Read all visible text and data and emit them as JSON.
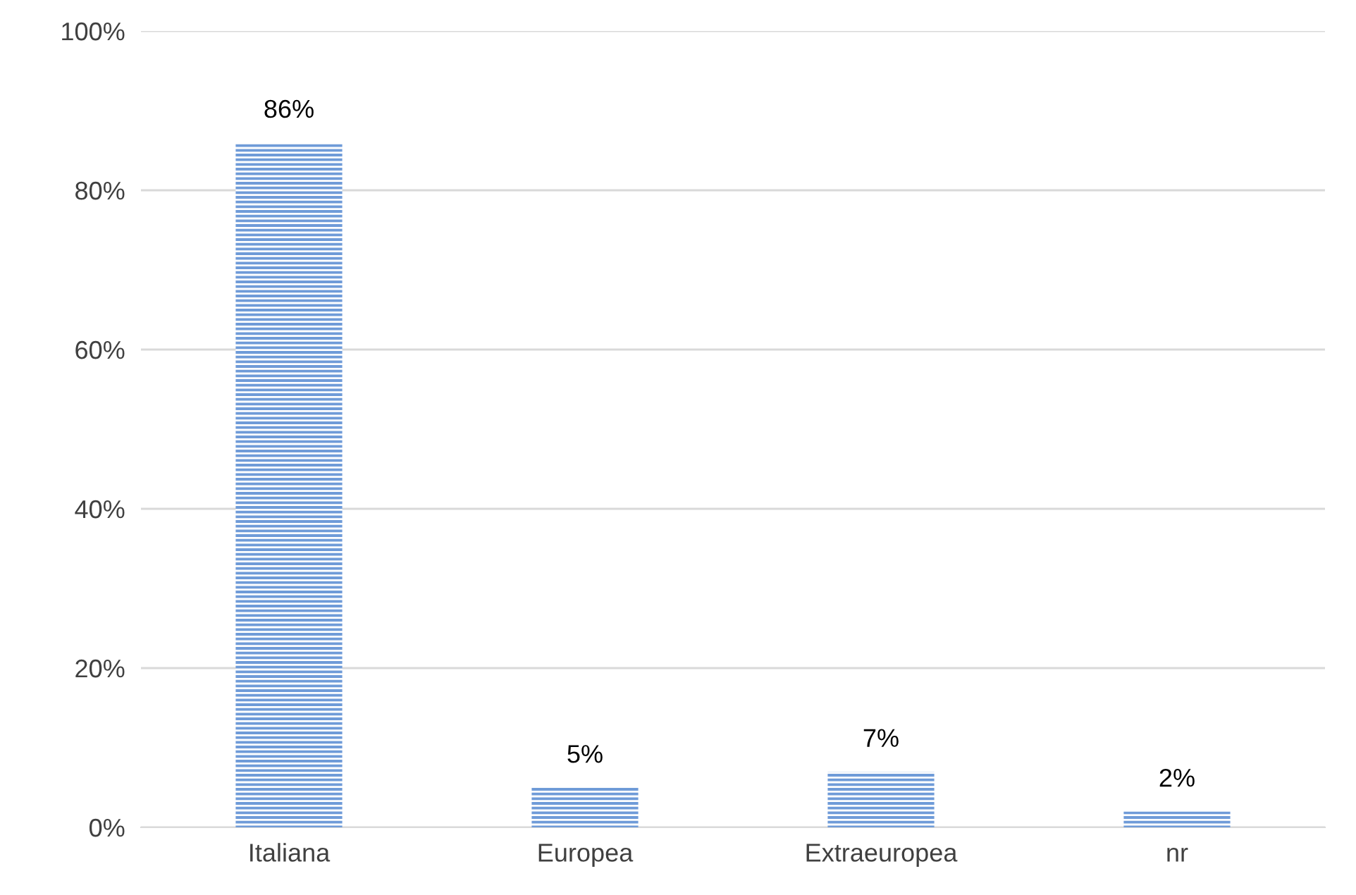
{
  "chart_data": {
    "type": "bar",
    "categories": [
      "Italiana",
      "Europea",
      "Extraeuropea",
      "nr"
    ],
    "values": [
      86,
      5,
      7,
      2
    ],
    "value_labels": [
      "86%",
      "5%",
      "7%",
      "2%"
    ],
    "color": "#6f9bd8",
    "ylim": [
      0,
      100
    ],
    "yticks": [
      {
        "value": 0,
        "label": "0%"
      },
      {
        "value": 20,
        "label": "20%"
      },
      {
        "value": 40,
        "label": "40%"
      },
      {
        "value": 60,
        "label": "60%"
      },
      {
        "value": 80,
        "label": "80%"
      },
      {
        "value": 100,
        "label": "100%"
      }
    ],
    "grid": "y",
    "legend": false
  }
}
